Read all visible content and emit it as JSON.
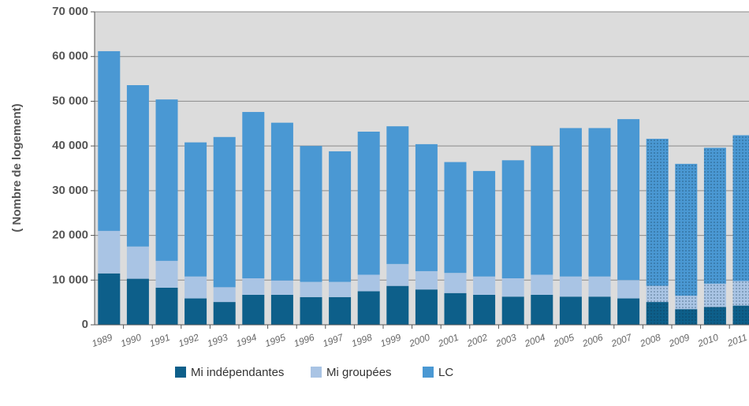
{
  "chart_data": {
    "type": "stacked_bar",
    "y_label": "( Nombre de logement)",
    "categories": [
      "1989",
      "1990",
      "1991",
      "1992",
      "1993",
      "1994",
      "1995",
      "1996",
      "1997",
      "1998",
      "1999",
      "2000",
      "2001",
      "2002",
      "2003",
      "2004",
      "2005",
      "2006",
      "2007",
      "2008",
      "2009",
      "2010",
      "2011"
    ],
    "series": [
      {
        "name": "Mi indépendantes",
        "color": "#0d5f8a",
        "values": [
          11500,
          10300,
          8300,
          5900,
          5100,
          6700,
          6700,
          6200,
          6200,
          7500,
          8700,
          7900,
          7100,
          6700,
          6300,
          6700,
          6300,
          6300,
          5900,
          5100,
          3500,
          4000,
          4300
        ]
      },
      {
        "name": "Mi groupées",
        "color": "#a9c4e4",
        "values": [
          9500,
          7200,
          6000,
          4900,
          3300,
          3700,
          3200,
          3400,
          3400,
          3700,
          4900,
          4100,
          4500,
          4100,
          4100,
          4500,
          4500,
          4500,
          4100,
          3600,
          3000,
          5200,
          5500
        ]
      },
      {
        "name": "LC",
        "color": "#4a98d3",
        "values": [
          40200,
          36100,
          36100,
          30000,
          33600,
          37200,
          35300,
          30400,
          29200,
          32000,
          30800,
          28400,
          24800,
          23600,
          26400,
          28800,
          33200,
          33200,
          36000,
          32900,
          29500,
          30400,
          32600
        ]
      }
    ],
    "projected_from": 19,
    "ylim": [
      0,
      70000
    ],
    "yticks": [
      0,
      {
        "value": 10000,
        "label": "10 000"
      },
      {
        "value": 20000,
        "label": "20 000"
      },
      {
        "value": 30000,
        "label": "30 000"
      },
      {
        "value": 40000,
        "label": "40 000"
      },
      {
        "value": 50000,
        "label": "50 000"
      },
      {
        "value": 60000,
        "label": "60 000"
      },
      {
        "value": 70000,
        "label": "70 000"
      }
    ],
    "grid": true,
    "legend": "bottom"
  }
}
